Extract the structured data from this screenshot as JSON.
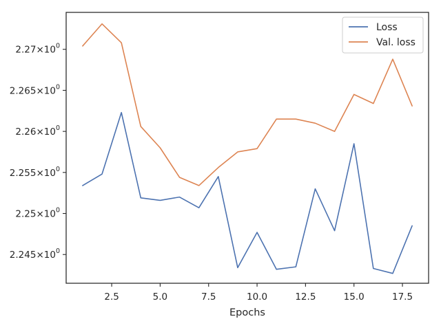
{
  "chart_data": {
    "type": "line",
    "title": "",
    "xlabel": "Epochs",
    "ylabel": "",
    "xlim": [
      0.15,
      18.85
    ],
    "ylim": [
      2.2415,
      2.2745
    ],
    "yscale": "log",
    "grid": false,
    "legend_position": "top-right",
    "x_ticks": [
      2.5,
      5.0,
      7.5,
      10.0,
      12.5,
      15.0,
      17.5
    ],
    "x_tick_labels": [
      "2.5",
      "5.0",
      "7.5",
      "10.0",
      "12.5",
      "15.0",
      "17.5"
    ],
    "y_ticks": [
      2.245,
      2.25,
      2.255,
      2.26,
      2.265,
      2.27
    ],
    "y_tick_labels": [
      {
        "mantissa": "2.245",
        "base": "10",
        "exp": "0"
      },
      {
        "mantissa": "2.25",
        "base": "10",
        "exp": "0"
      },
      {
        "mantissa": "2.255",
        "base": "10",
        "exp": "0"
      },
      {
        "mantissa": "2.26",
        "base": "10",
        "exp": "0"
      },
      {
        "mantissa": "2.265",
        "base": "10",
        "exp": "0"
      },
      {
        "mantissa": "2.27",
        "base": "10",
        "exp": "0"
      }
    ],
    "x": [
      1,
      2,
      3,
      4,
      5,
      6,
      7,
      8,
      9,
      10,
      11,
      12,
      13,
      14,
      15,
      16,
      17,
      18
    ],
    "series": [
      {
        "name": "Loss",
        "color": "#4c72b0",
        "values": [
          2.2534,
          2.2548,
          2.2623,
          2.2519,
          2.2516,
          2.252,
          2.2507,
          2.2545,
          2.2434,
          2.2477,
          2.2432,
          2.2435,
          2.253,
          2.2479,
          2.2585,
          2.2433,
          2.2427,
          2.2485
        ]
      },
      {
        "name": "Val. loss",
        "color": "#dd8452",
        "values": [
          2.2704,
          2.2731,
          2.2708,
          2.2606,
          2.258,
          2.2544,
          2.2534,
          2.2556,
          2.2575,
          2.2579,
          2.2615,
          2.2615,
          2.261,
          2.26,
          2.2645,
          2.2634,
          2.2688,
          2.2631
        ]
      }
    ]
  }
}
